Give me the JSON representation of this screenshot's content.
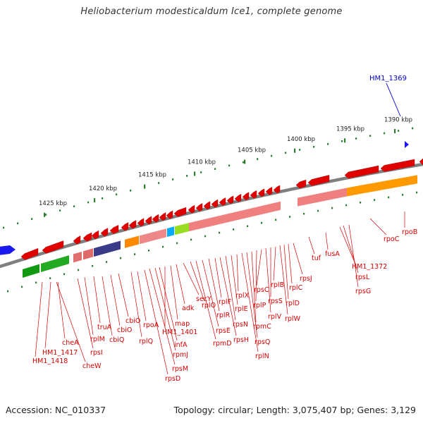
{
  "title": "Heliobacterium modesticaldum Ice1, complete genome",
  "accession": "Accession: NC_010337",
  "summary": "Topology: circular; Length: 3,075,407 bp; Genes: 3,129",
  "colors": {
    "backbone": "#7f7f7f",
    "ticks": "#2e7d32",
    "gene_label": "#d40000",
    "highlight_label": "#0000cc"
  },
  "kbp_ticks": [
    "1425 kbp",
    "1420 kbp",
    "1415 kbp",
    "1410 kbp",
    "1405 kbp",
    "1400 kbp",
    "1395 kbp",
    "1390 kbp"
  ],
  "gene_labels": [
    "HM1_1418",
    "HM1_1417",
    "cheW",
    "cheA",
    "rpsI",
    "rplM",
    "truA",
    "cbiQ",
    "cbiO",
    "cbiO",
    "rplQ",
    "rpoA",
    "rpsD",
    "rpsM",
    "rpmJ",
    "infA",
    "HM1_1401",
    "map",
    "adk",
    "secY",
    "rplO",
    "rpmD",
    "rpsE",
    "rplR",
    "rplF",
    "rpsH",
    "rpsN",
    "rplE",
    "rplX",
    "rplN",
    "rpsQ",
    "rpmC",
    "rplP",
    "rpsC",
    "rplV",
    "rpsS",
    "rplB",
    "rplW",
    "rplD",
    "rplC",
    "rpsJ",
    "tuf",
    "fusA",
    "HM1_1372",
    "rpsL",
    "rpsG",
    "rpoC",
    "rpoB"
  ],
  "highlight_gene": "HM1_1369"
}
